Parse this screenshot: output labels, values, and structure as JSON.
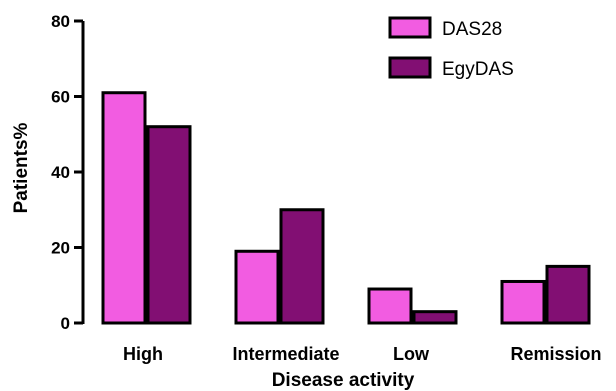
{
  "chart_data": {
    "type": "bar",
    "categories": [
      "High",
      "Intermediate",
      "Low",
      "Remission"
    ],
    "series": [
      {
        "name": "DAS28",
        "values": [
          61,
          19,
          9,
          11
        ],
        "color": "#f25ce1"
      },
      {
        "name": "EgyDAS",
        "values": [
          52,
          30,
          3,
          15
        ],
        "color": "#820f73"
      }
    ],
    "title": "",
    "xlabel": "Disease activity",
    "ylabel": "Patients%",
    "ylim": [
      0,
      80
    ],
    "yticks": [
      0,
      20,
      40,
      60,
      80
    ],
    "grid": false,
    "legend": "top-right",
    "bar_outline_color": "#000000"
  }
}
